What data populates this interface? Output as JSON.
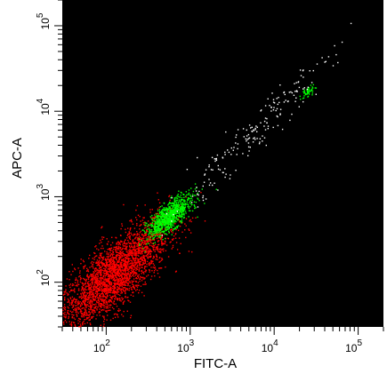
{
  "chart_data": {
    "type": "scatter",
    "xlabel": "FITC-A",
    "ylabel": "APC-A",
    "x_scale": "log",
    "y_scale": "log",
    "xlim": [
      30,
      200000
    ],
    "ylim": [
      30,
      200000
    ],
    "x_ticks": [
      {
        "value": 100,
        "base": "10",
        "exp": "2"
      },
      {
        "value": 1000,
        "base": "10",
        "exp": "3"
      },
      {
        "value": 10000,
        "base": "10",
        "exp": "4"
      },
      {
        "value": 100000,
        "base": "10",
        "exp": "5"
      }
    ],
    "y_ticks": [
      {
        "value": 100,
        "base": "10",
        "exp": "2"
      },
      {
        "value": 1000,
        "base": "10",
        "exp": "3"
      },
      {
        "value": 10000,
        "base": "10",
        "exp": "4"
      },
      {
        "value": 100000,
        "base": "10",
        "exp": "5"
      }
    ],
    "background": "#000000",
    "grid": false,
    "legend": "none",
    "populations": [
      {
        "color": "#ff0000",
        "center": [
          120,
          120
        ],
        "spread_decades": [
          0.33,
          0.33
        ],
        "correlation": 0.78,
        "count": 3000
      },
      {
        "color": "#00ff00",
        "center": [
          560,
          600
        ],
        "spread_decades": [
          0.13,
          0.12
        ],
        "correlation": 0.75,
        "count": 900
      },
      {
        "color": "#00ff00",
        "center": [
          25000,
          17000
        ],
        "spread_decades": [
          0.04,
          0.04
        ],
        "correlation": 0.6,
        "count": 50
      },
      {
        "color": "#ffffff",
        "center": [
          5000,
          5000
        ],
        "spread_decades": [
          0.5,
          0.5
        ],
        "correlation": 0.97,
        "count": 200
      }
    ]
  }
}
